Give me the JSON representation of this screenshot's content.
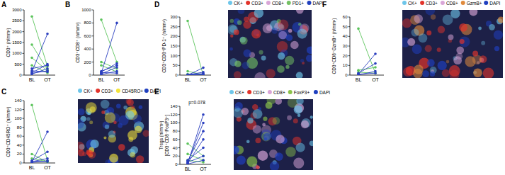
{
  "chart_data": [
    {
      "type": "paired_dot",
      "title": "A",
      "ylabel": "CD3⁺ (n/mm²)",
      "categories": [
        "BL",
        "OT"
      ],
      "ylim": [
        0,
        3000
      ],
      "yticks": [
        0,
        500,
        1000,
        1500,
        2000,
        2500,
        3000
      ],
      "series": [
        {
          "color": "#5cc45c",
          "values": [
            2700,
            400
          ]
        },
        {
          "color": "#5cc45c",
          "values": [
            1400,
            250
          ]
        },
        {
          "color": "#5cc45c",
          "values": [
            800,
            200
          ]
        },
        {
          "color": "#5cc45c",
          "values": [
            450,
            100
          ]
        },
        {
          "color": "#2b3fbf",
          "values": [
            150,
            1900
          ]
        },
        {
          "color": "#2b3fbf",
          "values": [
            100,
            500
          ]
        },
        {
          "color": "#2b3fbf",
          "values": [
            300,
            450
          ]
        },
        {
          "color": "#2b3fbf",
          "values": [
            50,
            300
          ]
        },
        {
          "color": "#2b3fbf",
          "values": [
            200,
            150
          ]
        },
        {
          "color": "#2b3fbf",
          "values": [
            80,
            200
          ]
        }
      ]
    },
    {
      "type": "paired_dot",
      "title": "B",
      "ylabel": "CD3⁺CD8⁺ (n/mm²)",
      "categories": [
        "BL",
        "OT"
      ],
      "ylim": [
        0,
        1000
      ],
      "yticks": [
        0,
        200,
        400,
        600,
        800,
        1000
      ],
      "series": [
        {
          "color": "#5cc45c",
          "values": [
            850,
            200
          ]
        },
        {
          "color": "#5cc45c",
          "values": [
            200,
            100
          ]
        },
        {
          "color": "#5cc45c",
          "values": [
            150,
            50
          ]
        },
        {
          "color": "#2b3fbf",
          "values": [
            30,
            800
          ]
        },
        {
          "color": "#2b3fbf",
          "values": [
            50,
            180
          ]
        },
        {
          "color": "#2b3fbf",
          "values": [
            20,
            120
          ]
        },
        {
          "color": "#2b3fbf",
          "values": [
            60,
            150
          ]
        },
        {
          "color": "#2b3fbf",
          "values": [
            10,
            60
          ]
        },
        {
          "color": "#2b3fbf",
          "values": [
            40,
            30
          ]
        }
      ]
    },
    {
      "type": "paired_dot",
      "title": "C",
      "ylabel": "CD3⁺CD45RO⁺ (n/mm²)",
      "categories": [
        "BL",
        "OT"
      ],
      "ylim": [
        0,
        140
      ],
      "yticks": [
        0,
        20,
        40,
        60,
        80,
        100,
        120,
        140
      ],
      "image_legend": [
        {
          "name": "CK+",
          "color": "#6ec6ea"
        },
        {
          "name": "CD3+",
          "color": "#e2332a"
        },
        {
          "name": "CD45RO+",
          "color": "#f3e43a"
        },
        {
          "name": "DAPI",
          "color": "#1f3fbf"
        }
      ],
      "series": [
        {
          "color": "#5cc45c",
          "values": [
            130,
            5
          ]
        },
        {
          "color": "#5cc45c",
          "values": [
            20,
            2
          ]
        },
        {
          "color": "#5cc45c",
          "values": [
            10,
            3
          ]
        },
        {
          "color": "#2b3fbf",
          "values": [
            2,
            70
          ]
        },
        {
          "color": "#2b3fbf",
          "values": [
            5,
            25
          ]
        },
        {
          "color": "#2b3fbf",
          "values": [
            3,
            10
          ]
        },
        {
          "color": "#2b3fbf",
          "values": [
            1,
            5
          ]
        },
        {
          "color": "#2b3fbf",
          "values": [
            4,
            3
          ]
        }
      ]
    },
    {
      "type": "paired_dot",
      "title": "D",
      "ylabel": "CD3⁺CD8⁺PD-1⁺ (n/mm²)",
      "categories": [
        "BL",
        "OT"
      ],
      "ylim": [
        0,
        300
      ],
      "yticks": [
        0,
        50,
        100,
        150,
        200,
        250,
        300
      ],
      "image_legend": [
        {
          "name": "CK+",
          "color": "#6ec6ea"
        },
        {
          "name": "CD3+",
          "color": "#e2332a"
        },
        {
          "name": "CD8+",
          "color": "#d9a6d8"
        },
        {
          "name": "PD1+",
          "color": "#74c164"
        },
        {
          "name": "DAPI",
          "color": "#1f3fbf"
        }
      ],
      "series": [
        {
          "color": "#5cc45c",
          "values": [
            280,
            0
          ]
        },
        {
          "color": "#5cc45c",
          "values": [
            20,
            2
          ]
        },
        {
          "color": "#5cc45c",
          "values": [
            5,
            1
          ]
        },
        {
          "color": "#2b3fbf",
          "values": [
            0,
            38
          ]
        },
        {
          "color": "#2b3fbf",
          "values": [
            2,
            15
          ]
        },
        {
          "color": "#2b3fbf",
          "values": [
            1,
            8
          ]
        },
        {
          "color": "#2b3fbf",
          "values": [
            0,
            5
          ]
        },
        {
          "color": "#2b3fbf",
          "values": [
            3,
            2
          ]
        }
      ]
    },
    {
      "type": "paired_dot",
      "title": "E",
      "ylabel": [
        "Tregs (n/mm²)",
        "[CD3⁺CD8⁻FoxP3⁺]"
      ],
      "categories": [
        "BL",
        "OT"
      ],
      "ylim": [
        0,
        140
      ],
      "yticks": [
        0,
        20,
        40,
        60,
        80,
        100,
        120,
        140
      ],
      "annotation": "p=0.078",
      "image_legend": [
        {
          "name": "CK+",
          "color": "#6ec6ea"
        },
        {
          "name": "CD3+",
          "color": "#e2332a"
        },
        {
          "name": "CD8+",
          "color": "#d9a6d8"
        },
        {
          "name": "FoxP3+",
          "color": "#8bc34a"
        },
        {
          "name": "DAPI",
          "color": "#1f3fbf"
        }
      ],
      "series": [
        {
          "color": "#5cc45c",
          "values": [
            50,
            20
          ]
        },
        {
          "color": "#5cc45c",
          "values": [
            25,
            10
          ]
        },
        {
          "color": "#5cc45c",
          "values": [
            10,
            5
          ]
        },
        {
          "color": "#2b3fbf",
          "values": [
            2,
            120
          ]
        },
        {
          "color": "#2b3fbf",
          "values": [
            5,
            100
          ]
        },
        {
          "color": "#2b3fbf",
          "values": [
            8,
            80
          ]
        },
        {
          "color": "#2b3fbf",
          "values": [
            3,
            60
          ]
        },
        {
          "color": "#2b3fbf",
          "values": [
            10,
            40
          ]
        },
        {
          "color": "#2b3fbf",
          "values": [
            5,
            20
          ]
        },
        {
          "color": "#2b3fbf",
          "values": [
            1,
            10
          ]
        }
      ]
    },
    {
      "type": "paired_dot",
      "title": "F",
      "ylabel": "CD3⁺CD8⁺GzmB⁺ (n/mm²)",
      "categories": [
        "BL",
        "OT"
      ],
      "ylim": [
        0,
        60
      ],
      "yticks": [
        0,
        10,
        20,
        30,
        40,
        50,
        60
      ],
      "image_legend": [
        {
          "name": "CK+",
          "color": "#6ec6ea"
        },
        {
          "name": "CD3+",
          "color": "#e2332a"
        },
        {
          "name": "CD8+",
          "color": "#d9a6d8"
        },
        {
          "name": "GzmB+",
          "color": "#e08a3c"
        },
        {
          "name": "DAPI",
          "color": "#1f3fbf"
        }
      ],
      "series": [
        {
          "color": "#5cc45c",
          "values": [
            48,
            2
          ]
        },
        {
          "color": "#5cc45c",
          "values": [
            5,
            8
          ]
        },
        {
          "color": "#5cc45c",
          "values": [
            3,
            2
          ]
        },
        {
          "color": "#2b3fbf",
          "values": [
            1,
            22
          ]
        },
        {
          "color": "#2b3fbf",
          "values": [
            2,
            12
          ]
        },
        {
          "color": "#2b3fbf",
          "values": [
            0,
            4
          ]
        },
        {
          "color": "#2b3fbf",
          "values": [
            1,
            2
          ]
        }
      ]
    }
  ]
}
